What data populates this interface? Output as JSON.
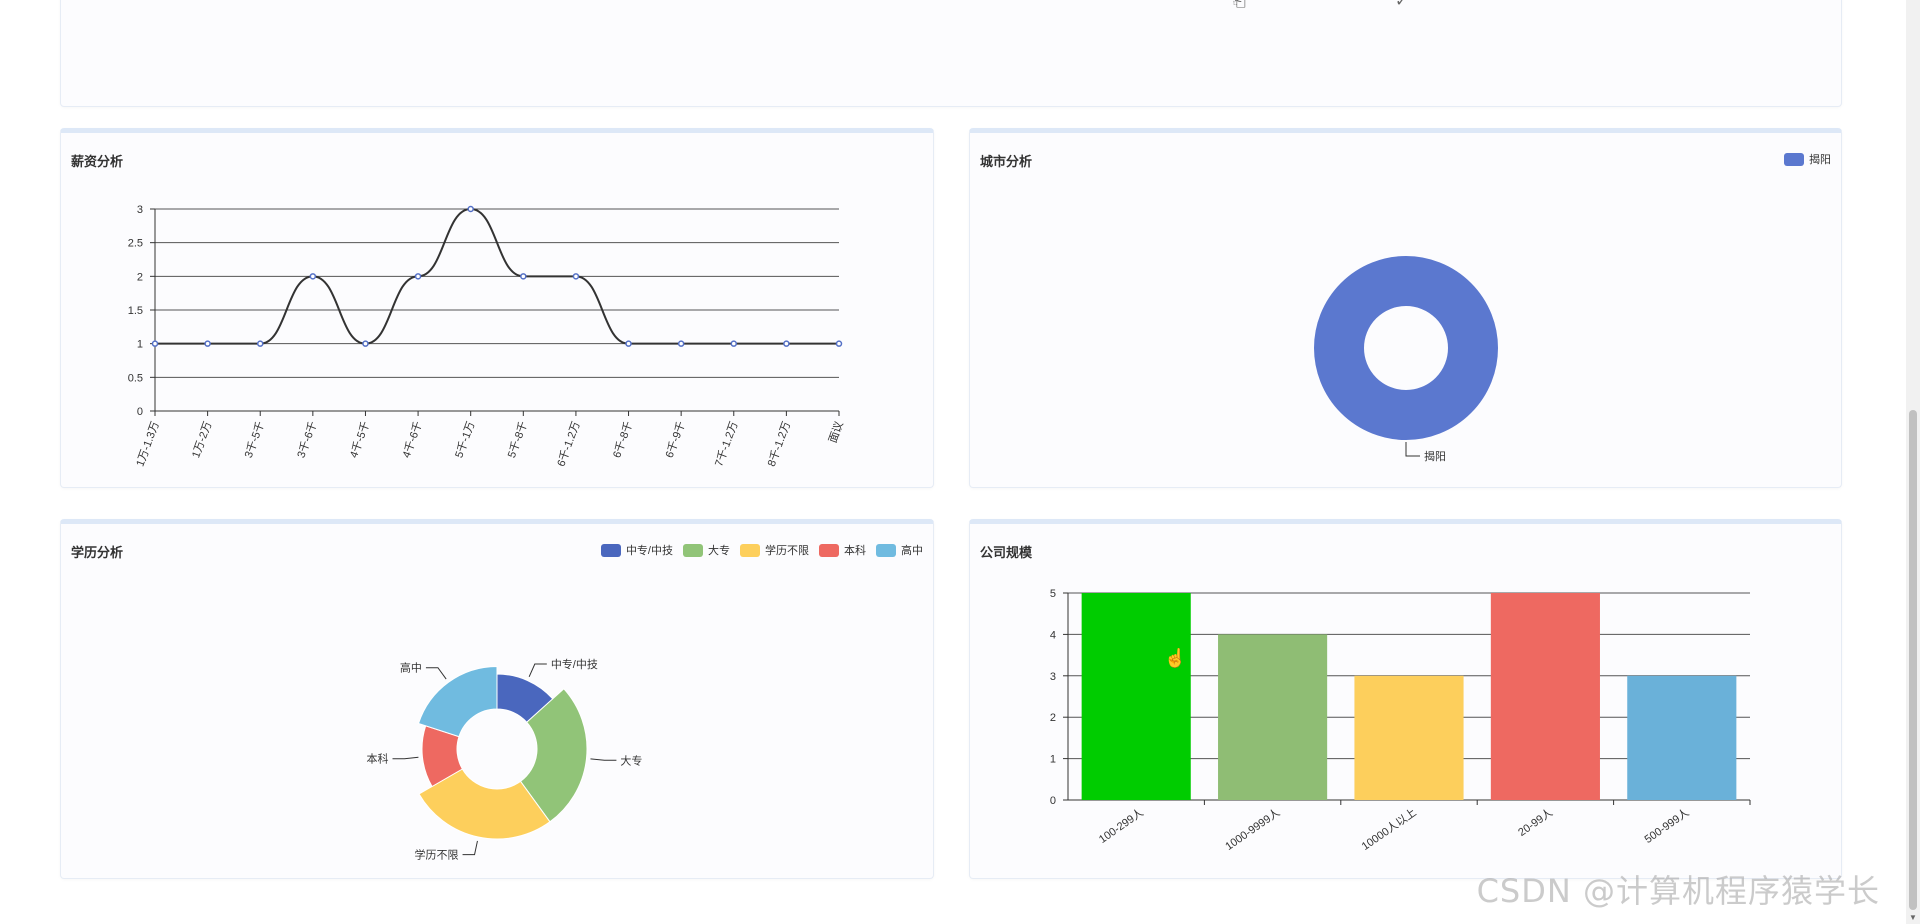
{
  "top_card": {},
  "salary": {
    "title": "薪资分析",
    "chart_data": {
      "type": "line",
      "categories": [
        "1万-1.3万",
        "1万-2万",
        "3千-5千",
        "3千-6千",
        "4千-5千",
        "4千-6千",
        "5千-1万",
        "5千-8千",
        "6千-1.2万",
        "6千-8千",
        "6千-9千",
        "7千-1.2万",
        "8千-1.2万",
        "面议"
      ],
      "values": [
        1,
        1,
        1,
        2,
        1,
        2,
        3,
        2,
        2,
        1,
        1,
        1,
        1,
        1
      ],
      "yticks": [
        "0",
        "0.5",
        "1",
        "1.5",
        "2",
        "2.5",
        "3"
      ],
      "ylim": [
        0,
        3
      ],
      "smooth": true,
      "grid": true,
      "line_color": "#333333",
      "point_color": "#5470c6"
    }
  },
  "city": {
    "title": "城市分析",
    "legend": [
      {
        "name": "揭阳",
        "color": "#5b78cf"
      }
    ],
    "chart_data": {
      "type": "pie",
      "donut": true,
      "labels": [
        "揭阳"
      ],
      "values": [
        1
      ],
      "colors": [
        "#5b78cf"
      ],
      "legend_position": "top-right"
    }
  },
  "education": {
    "title": "学历分析",
    "legend": [
      {
        "name": "中专/中技",
        "color": "#4a67be"
      },
      {
        "name": "大专",
        "color": "#91c478"
      },
      {
        "name": "学历不限",
        "color": "#fdcf5c"
      },
      {
        "name": "本科",
        "color": "#ee6961"
      },
      {
        "name": "高中",
        "color": "#70bbe0"
      }
    ],
    "chart_data": {
      "type": "pie",
      "rose": true,
      "labels": [
        "中专/中技",
        "大专",
        "学历不限",
        "本科",
        "高中"
      ],
      "values": [
        2,
        4,
        4,
        2,
        3
      ],
      "colors": [
        "#4a67be",
        "#91c478",
        "#fdcf5c",
        "#ee6961",
        "#70bbe0"
      ],
      "legend_position": "top-right"
    }
  },
  "company": {
    "title": "公司规模",
    "chart_data": {
      "type": "bar",
      "categories": [
        "100-299人",
        "1000-9999人",
        "10000人以上",
        "20-99人",
        "500-999人"
      ],
      "values": [
        5,
        4,
        3,
        5,
        3
      ],
      "colors": [
        "#00cc00",
        "#8fbd74",
        "#fdcf5c",
        "#ee6961",
        "#6ab1d9"
      ],
      "yticks": [
        "0",
        "1",
        "2",
        "3",
        "4",
        "5"
      ],
      "ylim": [
        0,
        5
      ],
      "grid": true
    }
  },
  "watermark": "CSDN @计算机程序猿学长"
}
